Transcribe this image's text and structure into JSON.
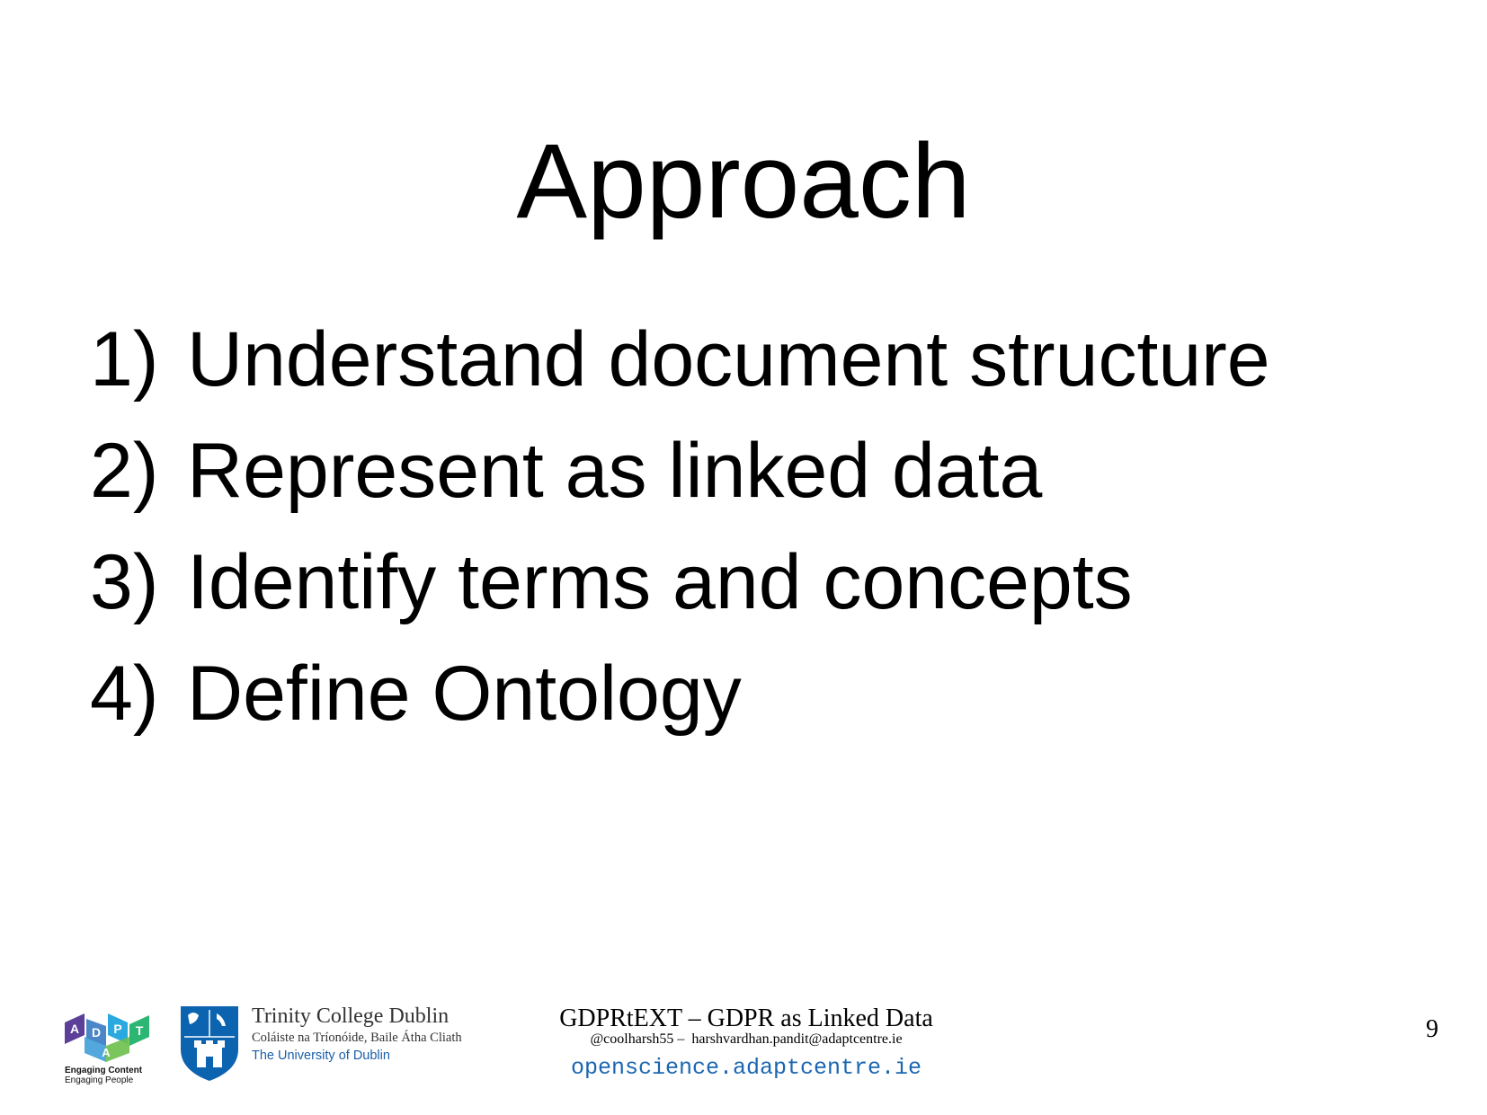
{
  "slide": {
    "title": "Approach",
    "items": [
      {
        "number": "1)",
        "text": "Understand document structure"
      },
      {
        "number": "2)",
        "text": "Represent as linked data"
      },
      {
        "number": "3)",
        "text": "Identify terms and concepts"
      },
      {
        "number": "4)",
        "text": "Define Ontology"
      }
    ]
  },
  "footer": {
    "adapt_logo": {
      "icon": "adapt-logo-icon",
      "letters": [
        "A",
        "D",
        "A",
        "P",
        "T"
      ],
      "tagline_bold": "Engaging Content",
      "tagline": "Engaging People",
      "colors": [
        "#5b3f98",
        "#4a86c8",
        "#29a9e0",
        "#2bb673",
        "#8dc63f"
      ]
    },
    "tcd_logo": {
      "icon": "tcd-shield-icon",
      "name": "Trinity College Dublin",
      "irish_name": "Coláiste na Tríonóide, Baile Átha Cliath",
      "university": "The University of Dublin",
      "color": "#0c63b0"
    },
    "talk_title": "GDPRtEXT – GDPR as Linked Data",
    "contact": "@coolharsh55 –  harshvardhan.pandit@adaptcentre.ie",
    "website": "openscience.adaptcentre.ie",
    "page_number": "9"
  }
}
